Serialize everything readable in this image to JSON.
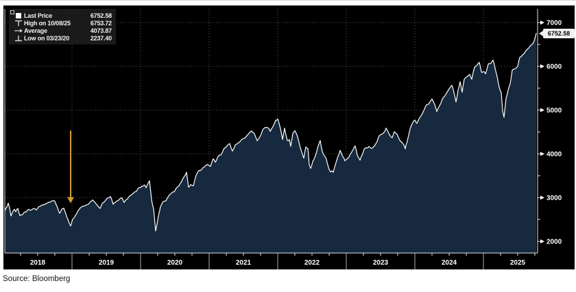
{
  "source": {
    "label": "Source: Bloomberg"
  },
  "chart": {
    "legend": {
      "items": [
        {
          "icon": "last-price-square",
          "label": "Last Price",
          "value": "6752.58"
        },
        {
          "icon": "high-marker",
          "label": "High on 10/08/25",
          "value": "6753.72"
        },
        {
          "icon": "average-marker",
          "label": "Average",
          "value": "4073.87"
        },
        {
          "icon": "low-marker",
          "label": "Low on 03/23/20",
          "value": "2237.40"
        }
      ]
    },
    "last_price_badge": "6752.58",
    "colors": {
      "page_bg": "#ffffff",
      "chart_bg": "#000000",
      "area_fill": "#16293e",
      "line": "#ffffff",
      "grid": "#5a5a5a",
      "axis": "#e8e8e8",
      "tick_text": "#ffffff",
      "badge_bg": "#f2f2f2",
      "badge_text": "#000000",
      "arrow": "#d49b33",
      "legend_bg": "#1b1b1b",
      "source_text": "#141414"
    }
  },
  "chart_data": {
    "type": "area",
    "title": "",
    "xlabel": "",
    "ylabel": "",
    "xlim": [
      2018.0,
      2025.79
    ],
    "ylim": [
      1734,
      7312
    ],
    "grid": true,
    "legend_position": "top-left",
    "yticks": [
      2000,
      3000,
      4000,
      5000,
      6000,
      7000
    ],
    "yticks_minor": [
      2500,
      3500,
      4500,
      5500,
      6500
    ],
    "year_boundaries": [
      2019,
      2020,
      2021,
      2022,
      2023,
      2024,
      2025
    ],
    "x_category_labels": [
      "2018",
      "2019",
      "2020",
      "2021",
      "2022",
      "2023",
      "2024",
      "2025"
    ],
    "last_price": 6752.58,
    "high": {
      "date": "10/08/25",
      "value": 6753.72
    },
    "average": 4073.87,
    "low": {
      "date": "03/23/20",
      "value": 2237.4
    },
    "annotations": [
      {
        "type": "arrow-down",
        "x": 2018.98,
        "from_value": 4530,
        "to_value": 2870,
        "color": "#d49b33"
      }
    ],
    "points": [
      [
        2018.02,
        2696
      ],
      [
        2018.05,
        2786
      ],
      [
        2018.07,
        2873
      ],
      [
        2018.09,
        2762
      ],
      [
        2018.11,
        2581
      ],
      [
        2018.14,
        2688
      ],
      [
        2018.16,
        2732
      ],
      [
        2018.18,
        2677
      ],
      [
        2018.21,
        2752
      ],
      [
        2018.24,
        2588
      ],
      [
        2018.27,
        2605
      ],
      [
        2018.3,
        2663
      ],
      [
        2018.33,
        2670
      ],
      [
        2018.36,
        2728
      ],
      [
        2018.4,
        2713
      ],
      [
        2018.44,
        2755
      ],
      [
        2018.48,
        2718
      ],
      [
        2018.52,
        2801
      ],
      [
        2018.56,
        2833
      ],
      [
        2018.6,
        2850
      ],
      [
        2018.64,
        2875
      ],
      [
        2018.68,
        2897
      ],
      [
        2018.72,
        2930
      ],
      [
        2018.75,
        2914
      ],
      [
        2018.79,
        2768
      ],
      [
        2018.82,
        2641
      ],
      [
        2018.85,
        2736
      ],
      [
        2018.88,
        2760
      ],
      [
        2018.91,
        2633
      ],
      [
        2018.94,
        2506
      ],
      [
        2018.98,
        2351
      ],
      [
        2019.01,
        2510
      ],
      [
        2019.05,
        2596
      ],
      [
        2019.09,
        2707
      ],
      [
        2019.13,
        2776
      ],
      [
        2019.17,
        2804
      ],
      [
        2019.21,
        2834
      ],
      [
        2019.25,
        2867
      ],
      [
        2019.3,
        2946
      ],
      [
        2019.34,
        2881
      ],
      [
        2019.41,
        2752
      ],
      [
        2019.45,
        2886
      ],
      [
        2019.49,
        2942
      ],
      [
        2019.53,
        2995
      ],
      [
        2019.56,
        3026
      ],
      [
        2019.6,
        2847
      ],
      [
        2019.63,
        2889
      ],
      [
        2019.66,
        2926
      ],
      [
        2019.7,
        2979
      ],
      [
        2019.73,
        2992
      ],
      [
        2019.76,
        2888
      ],
      [
        2019.79,
        2952
      ],
      [
        2019.83,
        3023
      ],
      [
        2019.87,
        3067
      ],
      [
        2019.9,
        3110
      ],
      [
        2019.94,
        3141
      ],
      [
        2019.98,
        3231
      ],
      [
        2020.03,
        3258
      ],
      [
        2020.06,
        3289
      ],
      [
        2020.08,
        3226
      ],
      [
        2020.13,
        3386
      ],
      [
        2020.16,
        2954
      ],
      [
        2020.19,
        2741
      ],
      [
        2020.22,
        2237
      ],
      [
        2020.26,
        2585
      ],
      [
        2020.29,
        2790
      ],
      [
        2020.33,
        2912
      ],
      [
        2020.37,
        2930
      ],
      [
        2020.41,
        3044
      ],
      [
        2020.45,
        3100
      ],
      [
        2020.49,
        3130
      ],
      [
        2020.52,
        3215
      ],
      [
        2020.56,
        3271
      ],
      [
        2020.6,
        3373
      ],
      [
        2020.67,
        3580
      ],
      [
        2020.7,
        3237
      ],
      [
        2020.73,
        3298
      ],
      [
        2020.77,
        3270
      ],
      [
        2020.81,
        3510
      ],
      [
        2020.85,
        3622
      ],
      [
        2020.89,
        3638
      ],
      [
        2020.93,
        3703
      ],
      [
        2020.98,
        3756
      ],
      [
        2021.02,
        3714
      ],
      [
        2021.06,
        3887
      ],
      [
        2021.09,
        3811
      ],
      [
        2021.13,
        3943
      ],
      [
        2021.17,
        3973
      ],
      [
        2021.22,
        4128
      ],
      [
        2021.26,
        4181
      ],
      [
        2021.3,
        4233
      ],
      [
        2021.34,
        4063
      ],
      [
        2021.38,
        4204
      ],
      [
        2021.42,
        4247
      ],
      [
        2021.46,
        4298
      ],
      [
        2021.5,
        4352
      ],
      [
        2021.54,
        4395
      ],
      [
        2021.58,
        4468
      ],
      [
        2021.62,
        4523
      ],
      [
        2021.66,
        4455
      ],
      [
        2021.7,
        4300
      ],
      [
        2021.74,
        4391
      ],
      [
        2021.78,
        4545
      ],
      [
        2021.82,
        4605
      ],
      [
        2021.86,
        4595
      ],
      [
        2021.89,
        4513
      ],
      [
        2021.93,
        4620
      ],
      [
        2021.97,
        4766
      ],
      [
        2022.0,
        4797
      ],
      [
        2022.04,
        4577
      ],
      [
        2022.07,
        4327
      ],
      [
        2022.1,
        4589
      ],
      [
        2022.14,
        4305
      ],
      [
        2022.17,
        4328
      ],
      [
        2022.19,
        4171
      ],
      [
        2022.22,
        4463
      ],
      [
        2022.25,
        4530
      ],
      [
        2022.29,
        4392
      ],
      [
        2022.33,
        4132
      ],
      [
        2022.38,
        3901
      ],
      [
        2022.41,
        4158
      ],
      [
        2022.44,
        4122
      ],
      [
        2022.46,
        3750
      ],
      [
        2022.48,
        3667
      ],
      [
        2022.51,
        3825
      ],
      [
        2022.55,
        3962
      ],
      [
        2022.58,
        4130
      ],
      [
        2022.62,
        4305
      ],
      [
        2022.65,
        4057
      ],
      [
        2022.68,
        3955
      ],
      [
        2022.71,
        3873
      ],
      [
        2022.74,
        3693
      ],
      [
        2022.77,
        3586
      ],
      [
        2022.79,
        3612
      ],
      [
        2022.81,
        3577
      ],
      [
        2022.85,
        3798
      ],
      [
        2022.88,
        3946
      ],
      [
        2022.91,
        4080
      ],
      [
        2022.95,
        3934
      ],
      [
        2022.98,
        3840
      ],
      [
        2023.02,
        3895
      ],
      [
        2023.06,
        3999
      ],
      [
        2023.09,
        4077
      ],
      [
        2023.13,
        4180
      ],
      [
        2023.16,
        3970
      ],
      [
        2023.2,
        3856
      ],
      [
        2023.23,
        3971
      ],
      [
        2023.26,
        4109
      ],
      [
        2023.3,
        4138
      ],
      [
        2023.33,
        4169
      ],
      [
        2023.37,
        4124
      ],
      [
        2023.41,
        4180
      ],
      [
        2023.45,
        4282
      ],
      [
        2023.48,
        4410
      ],
      [
        2023.52,
        4450
      ],
      [
        2023.56,
        4510
      ],
      [
        2023.58,
        4589
      ],
      [
        2023.63,
        4437
      ],
      [
        2023.67,
        4370
      ],
      [
        2023.7,
        4508
      ],
      [
        2023.74,
        4450
      ],
      [
        2023.79,
        4288
      ],
      [
        2023.83,
        4224
      ],
      [
        2023.86,
        4117
      ],
      [
        2023.9,
        4365
      ],
      [
        2023.93,
        4568
      ],
      [
        2023.97,
        4719
      ],
      [
        2024.0,
        4770
      ],
      [
        2024.03,
        4697
      ],
      [
        2024.08,
        4846
      ],
      [
        2024.12,
        4958
      ],
      [
        2024.16,
        5096
      ],
      [
        2024.2,
        5137
      ],
      [
        2024.25,
        5254
      ],
      [
        2024.29,
        5123
      ],
      [
        2024.32,
        4967
      ],
      [
        2024.36,
        5100
      ],
      [
        2024.41,
        5278
      ],
      [
        2024.45,
        5354
      ],
      [
        2024.49,
        5460
      ],
      [
        2024.54,
        5567
      ],
      [
        2024.57,
        5399
      ],
      [
        2024.6,
        5186
      ],
      [
        2024.63,
        5455
      ],
      [
        2024.66,
        5648
      ],
      [
        2024.69,
        5408
      ],
      [
        2024.72,
        5702
      ],
      [
        2024.76,
        5762
      ],
      [
        2024.8,
        5815
      ],
      [
        2024.83,
        5705
      ],
      [
        2024.87,
        5973
      ],
      [
        2024.91,
        6032
      ],
      [
        2024.94,
        6090
      ],
      [
        2024.97,
        5867
      ],
      [
        2025.0,
        5882
      ],
      [
        2025.03,
        5827
      ],
      [
        2025.07,
        6049
      ],
      [
        2025.1,
        6061
      ],
      [
        2025.14,
        6144
      ],
      [
        2025.17,
        5955
      ],
      [
        2025.2,
        5770
      ],
      [
        2025.23,
        5521
      ],
      [
        2025.26,
        5397
      ],
      [
        2025.28,
        4983
      ],
      [
        2025.3,
        4835
      ],
      [
        2025.33,
        5268
      ],
      [
        2025.36,
        5456
      ],
      [
        2025.39,
        5604
      ],
      [
        2025.42,
        5912
      ],
      [
        2025.46,
        5940
      ],
      [
        2025.5,
        6000
      ],
      [
        2025.53,
        6205
      ],
      [
        2025.57,
        6263
      ],
      [
        2025.61,
        6339
      ],
      [
        2025.64,
        6389
      ],
      [
        2025.68,
        6460
      ],
      [
        2025.71,
        6502
      ],
      [
        2025.74,
        6584
      ],
      [
        2025.76,
        6688
      ],
      [
        2025.77,
        6753
      ]
    ]
  }
}
